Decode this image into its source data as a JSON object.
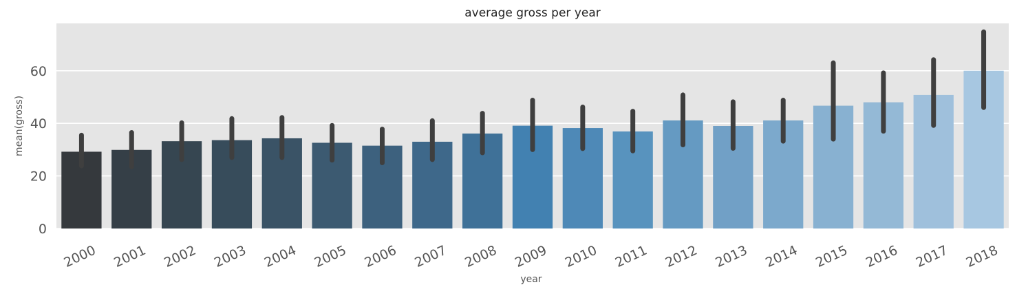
{
  "chart_data": {
    "type": "bar",
    "title": "average gross per year",
    "xlabel": "year",
    "ylabel": "mean(gross)",
    "ylim": [
      0,
      78
    ],
    "yticks": [
      0,
      20,
      40,
      60
    ],
    "grid": true,
    "background": "#e5e5e5",
    "error_bar_color": "#3f3f3f",
    "categories": [
      "2000",
      "2001",
      "2002",
      "2003",
      "2004",
      "2005",
      "2006",
      "2007",
      "2008",
      "2009",
      "2010",
      "2011",
      "2012",
      "2013",
      "2014",
      "2015",
      "2016",
      "2017",
      "2018"
    ],
    "values": [
      29.2,
      29.9,
      33.2,
      33.6,
      34.3,
      32.6,
      31.5,
      33.0,
      36.1,
      39.1,
      38.2,
      36.9,
      41.1,
      39.0,
      41.1,
      46.7,
      48.0,
      50.8,
      60.0
    ],
    "ci_low": [
      23.8,
      23.5,
      26.2,
      27.0,
      27.0,
      26.0,
      25.0,
      26.2,
      28.8,
      30.0,
      30.4,
      29.5,
      31.8,
      30.5,
      33.2,
      34.0,
      37.0,
      39.2,
      46.0
    ],
    "ci_high": [
      35.5,
      36.5,
      40.2,
      41.8,
      42.2,
      39.2,
      37.8,
      41.0,
      43.8,
      48.8,
      46.2,
      44.6,
      50.8,
      48.2,
      48.8,
      63.0,
      59.2,
      64.2,
      74.8
    ],
    "colors": [
      "#35393d",
      "#353f47",
      "#364651",
      "#374c5b",
      "#3a5366",
      "#3c5a71",
      "#3d617e",
      "#3e688a",
      "#3f7198",
      "#4281b1",
      "#4e89b7",
      "#5893be",
      "#659ac2",
      "#71a0c6",
      "#7ca9cc",
      "#88b1d1",
      "#94b9d6",
      "#9fc0dc",
      "#a7c7e1"
    ]
  }
}
